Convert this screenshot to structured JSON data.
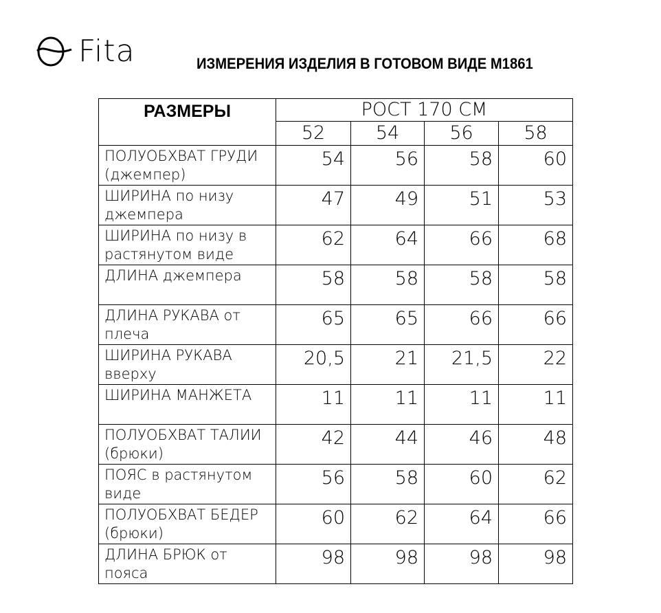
{
  "brand": "Fita",
  "title": "ИЗМЕРЕНИЯ ИЗДЕЛИЯ В ГОТОВОМ ВИДЕ М1861",
  "table": {
    "header_main": "РАЗМЕРЫ",
    "header_group": "РОСТ 170 СМ",
    "sizes": [
      "52",
      "54",
      "56",
      "58"
    ],
    "rows": [
      {
        "label": "ПОЛУОБХВАТ ГРУДИ (джемпер)",
        "values": [
          "54",
          "56",
          "58",
          "60"
        ]
      },
      {
        "label": "ШИРИНА по низу джемпера",
        "values": [
          "47",
          "49",
          "51",
          "53"
        ]
      },
      {
        "label": "ШИРИНА по низу в растянутом виде",
        "values": [
          "62",
          "64",
          "66",
          "68"
        ]
      },
      {
        "label": "ДЛИНА джемпера",
        "values": [
          "58",
          "58",
          "58",
          "58"
        ]
      },
      {
        "label": "ДЛИНА РУКАВА от плеча",
        "values": [
          "65",
          "65",
          "66",
          "66"
        ]
      },
      {
        "label": "ШИРИНА РУКАВА вверху",
        "values": [
          "20,5",
          "21",
          "21,5",
          "22"
        ]
      },
      {
        "label": "ШИРИНА МАНЖЕТА",
        "values": [
          "11",
          "11",
          "11",
          "11"
        ]
      },
      {
        "label": "ПОЛУОБХВАТ ТАЛИИ (брюки)",
        "values": [
          "42",
          "44",
          "46",
          "48"
        ]
      },
      {
        "label": "ПОЯС в растянутом виде",
        "values": [
          "56",
          "58",
          "60",
          "62"
        ]
      },
      {
        "label": "ПОЛУОБХВАТ БЕДЕР (брюки)",
        "values": [
          "60",
          "62",
          "64",
          "66"
        ]
      },
      {
        "label": "ДЛИНА БРЮК от пояса",
        "values": [
          "98",
          "98",
          "98",
          "98"
        ]
      }
    ]
  }
}
